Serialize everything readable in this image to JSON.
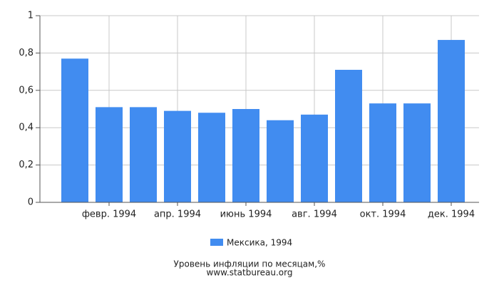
{
  "chart_data": {
    "type": "bar",
    "title": "Уровень инфляции по месяцам,%",
    "subtitle": "www.statbureau.org",
    "categories": [
      null,
      "февр. 1994",
      null,
      "апр. 1994",
      null,
      "июнь 1994",
      null,
      "авг. 1994",
      null,
      "окт. 1994",
      null,
      "дек. 1994"
    ],
    "series": [
      {
        "name": "Мексика, 1994",
        "color": "#418cf0",
        "values": [
          0.77,
          0.51,
          0.51,
          0.49,
          0.48,
          0.5,
          0.44,
          0.47,
          0.71,
          0.53,
          0.53,
          0.87
        ]
      }
    ],
    "ylim": [
      0,
      1
    ],
    "yticks": [
      0,
      {
        "value": 0.2,
        "label": "0,2"
      },
      {
        "value": 0.4,
        "label": "0,4"
      },
      {
        "value": 0.6,
        "label": "0,6"
      },
      {
        "value": 0.8,
        "label": "0,8"
      },
      1
    ],
    "grid": true
  }
}
